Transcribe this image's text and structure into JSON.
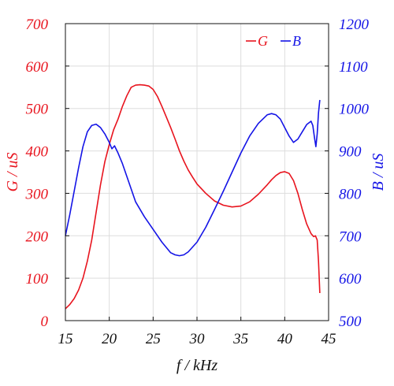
{
  "chart_data": {
    "type": "line",
    "xlabel": "f / kHz",
    "ylabel_left": "G / uS",
    "ylabel_right": "B / uS",
    "xlim": [
      15,
      45
    ],
    "ylim_left": [
      0,
      700
    ],
    "ylim_right": [
      500,
      1200
    ],
    "xticks": [
      15,
      20,
      25,
      30,
      35,
      40,
      45
    ],
    "yticks_left": [
      0,
      100,
      200,
      300,
      400,
      500,
      600,
      700
    ],
    "yticks_right": [
      500,
      600,
      700,
      800,
      900,
      1000,
      1100,
      1200
    ],
    "grid": true,
    "legend_position": "top-right",
    "colors": {
      "G": "#e8141e",
      "B": "#1414e6",
      "axis": "#111111",
      "grid": "#dddddd"
    },
    "series": [
      {
        "name": "G",
        "axis": "left",
        "color": "#e8141e",
        "points": [
          [
            15,
            28
          ],
          [
            15.5,
            38
          ],
          [
            16,
            52
          ],
          [
            16.5,
            72
          ],
          [
            17,
            100
          ],
          [
            17.5,
            140
          ],
          [
            18,
            190
          ],
          [
            18.5,
            255
          ],
          [
            19,
            320
          ],
          [
            19.5,
            375
          ],
          [
            20,
            415
          ],
          [
            20.5,
            450
          ],
          [
            21,
            475
          ],
          [
            21.5,
            505
          ],
          [
            22,
            530
          ],
          [
            22.5,
            550
          ],
          [
            23,
            555
          ],
          [
            23.5,
            556
          ],
          [
            24,
            555
          ],
          [
            24.5,
            553
          ],
          [
            25,
            545
          ],
          [
            25.5,
            528
          ],
          [
            26,
            505
          ],
          [
            26.5,
            480
          ],
          [
            27,
            455
          ],
          [
            27.5,
            428
          ],
          [
            28,
            400
          ],
          [
            28.5,
            376
          ],
          [
            29,
            355
          ],
          [
            29.5,
            338
          ],
          [
            30,
            322
          ],
          [
            31,
            300
          ],
          [
            32,
            282
          ],
          [
            33,
            272
          ],
          [
            34,
            268
          ],
          [
            35,
            270
          ],
          [
            36,
            280
          ],
          [
            37,
            298
          ],
          [
            38,
            320
          ],
          [
            38.5,
            332
          ],
          [
            39,
            342
          ],
          [
            39.5,
            349
          ],
          [
            40,
            351
          ],
          [
            40.5,
            347
          ],
          [
            41,
            330
          ],
          [
            41.5,
            300
          ],
          [
            42,
            262
          ],
          [
            42.5,
            228
          ],
          [
            43,
            205
          ],
          [
            43.3,
            198
          ],
          [
            43.5,
            200
          ],
          [
            43.7,
            190
          ],
          [
            43.85,
            140
          ],
          [
            44,
            65
          ]
        ]
      },
      {
        "name": "B",
        "axis": "right",
        "color": "#1414e6",
        "points": [
          [
            15,
            700
          ],
          [
            15.5,
            750
          ],
          [
            16,
            805
          ],
          [
            16.5,
            860
          ],
          [
            17,
            910
          ],
          [
            17.5,
            945
          ],
          [
            18,
            960
          ],
          [
            18.5,
            963
          ],
          [
            19,
            955
          ],
          [
            19.5,
            940
          ],
          [
            20,
            920
          ],
          [
            20.3,
            905
          ],
          [
            20.6,
            912
          ],
          [
            21,
            895
          ],
          [
            21.5,
            870
          ],
          [
            22,
            840
          ],
          [
            22.5,
            810
          ],
          [
            23,
            780
          ],
          [
            24,
            745
          ],
          [
            25,
            715
          ],
          [
            26,
            685
          ],
          [
            27,
            660
          ],
          [
            27.5,
            655
          ],
          [
            28,
            653
          ],
          [
            28.5,
            655
          ],
          [
            29,
            662
          ],
          [
            30,
            685
          ],
          [
            31,
            720
          ],
          [
            32,
            762
          ],
          [
            33,
            805
          ],
          [
            34,
            850
          ],
          [
            35,
            895
          ],
          [
            36,
            935
          ],
          [
            37,
            965
          ],
          [
            38,
            985
          ],
          [
            38.5,
            988
          ],
          [
            39,
            985
          ],
          [
            39.5,
            975
          ],
          [
            40,
            955
          ],
          [
            40.5,
            935
          ],
          [
            41,
            920
          ],
          [
            41.5,
            928
          ],
          [
            42,
            945
          ],
          [
            42.5,
            962
          ],
          [
            43,
            970
          ],
          [
            43.2,
            960
          ],
          [
            43.4,
            930
          ],
          [
            43.55,
            910
          ],
          [
            43.7,
            940
          ],
          [
            43.85,
            990
          ],
          [
            44,
            1020
          ]
        ]
      }
    ]
  }
}
